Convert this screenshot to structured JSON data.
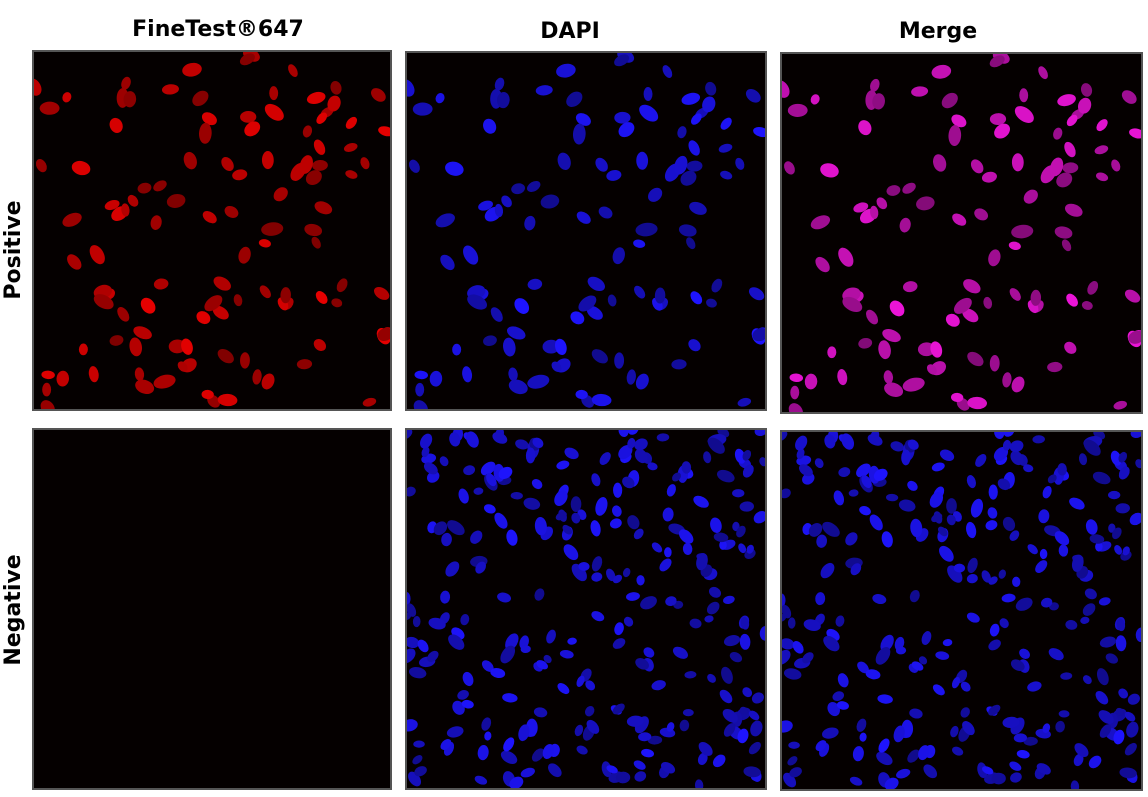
{
  "columns": [
    "FineTest®647",
    "DAPI",
    "Merge"
  ],
  "rows": [
    "Positive",
    "Negative"
  ]
}
